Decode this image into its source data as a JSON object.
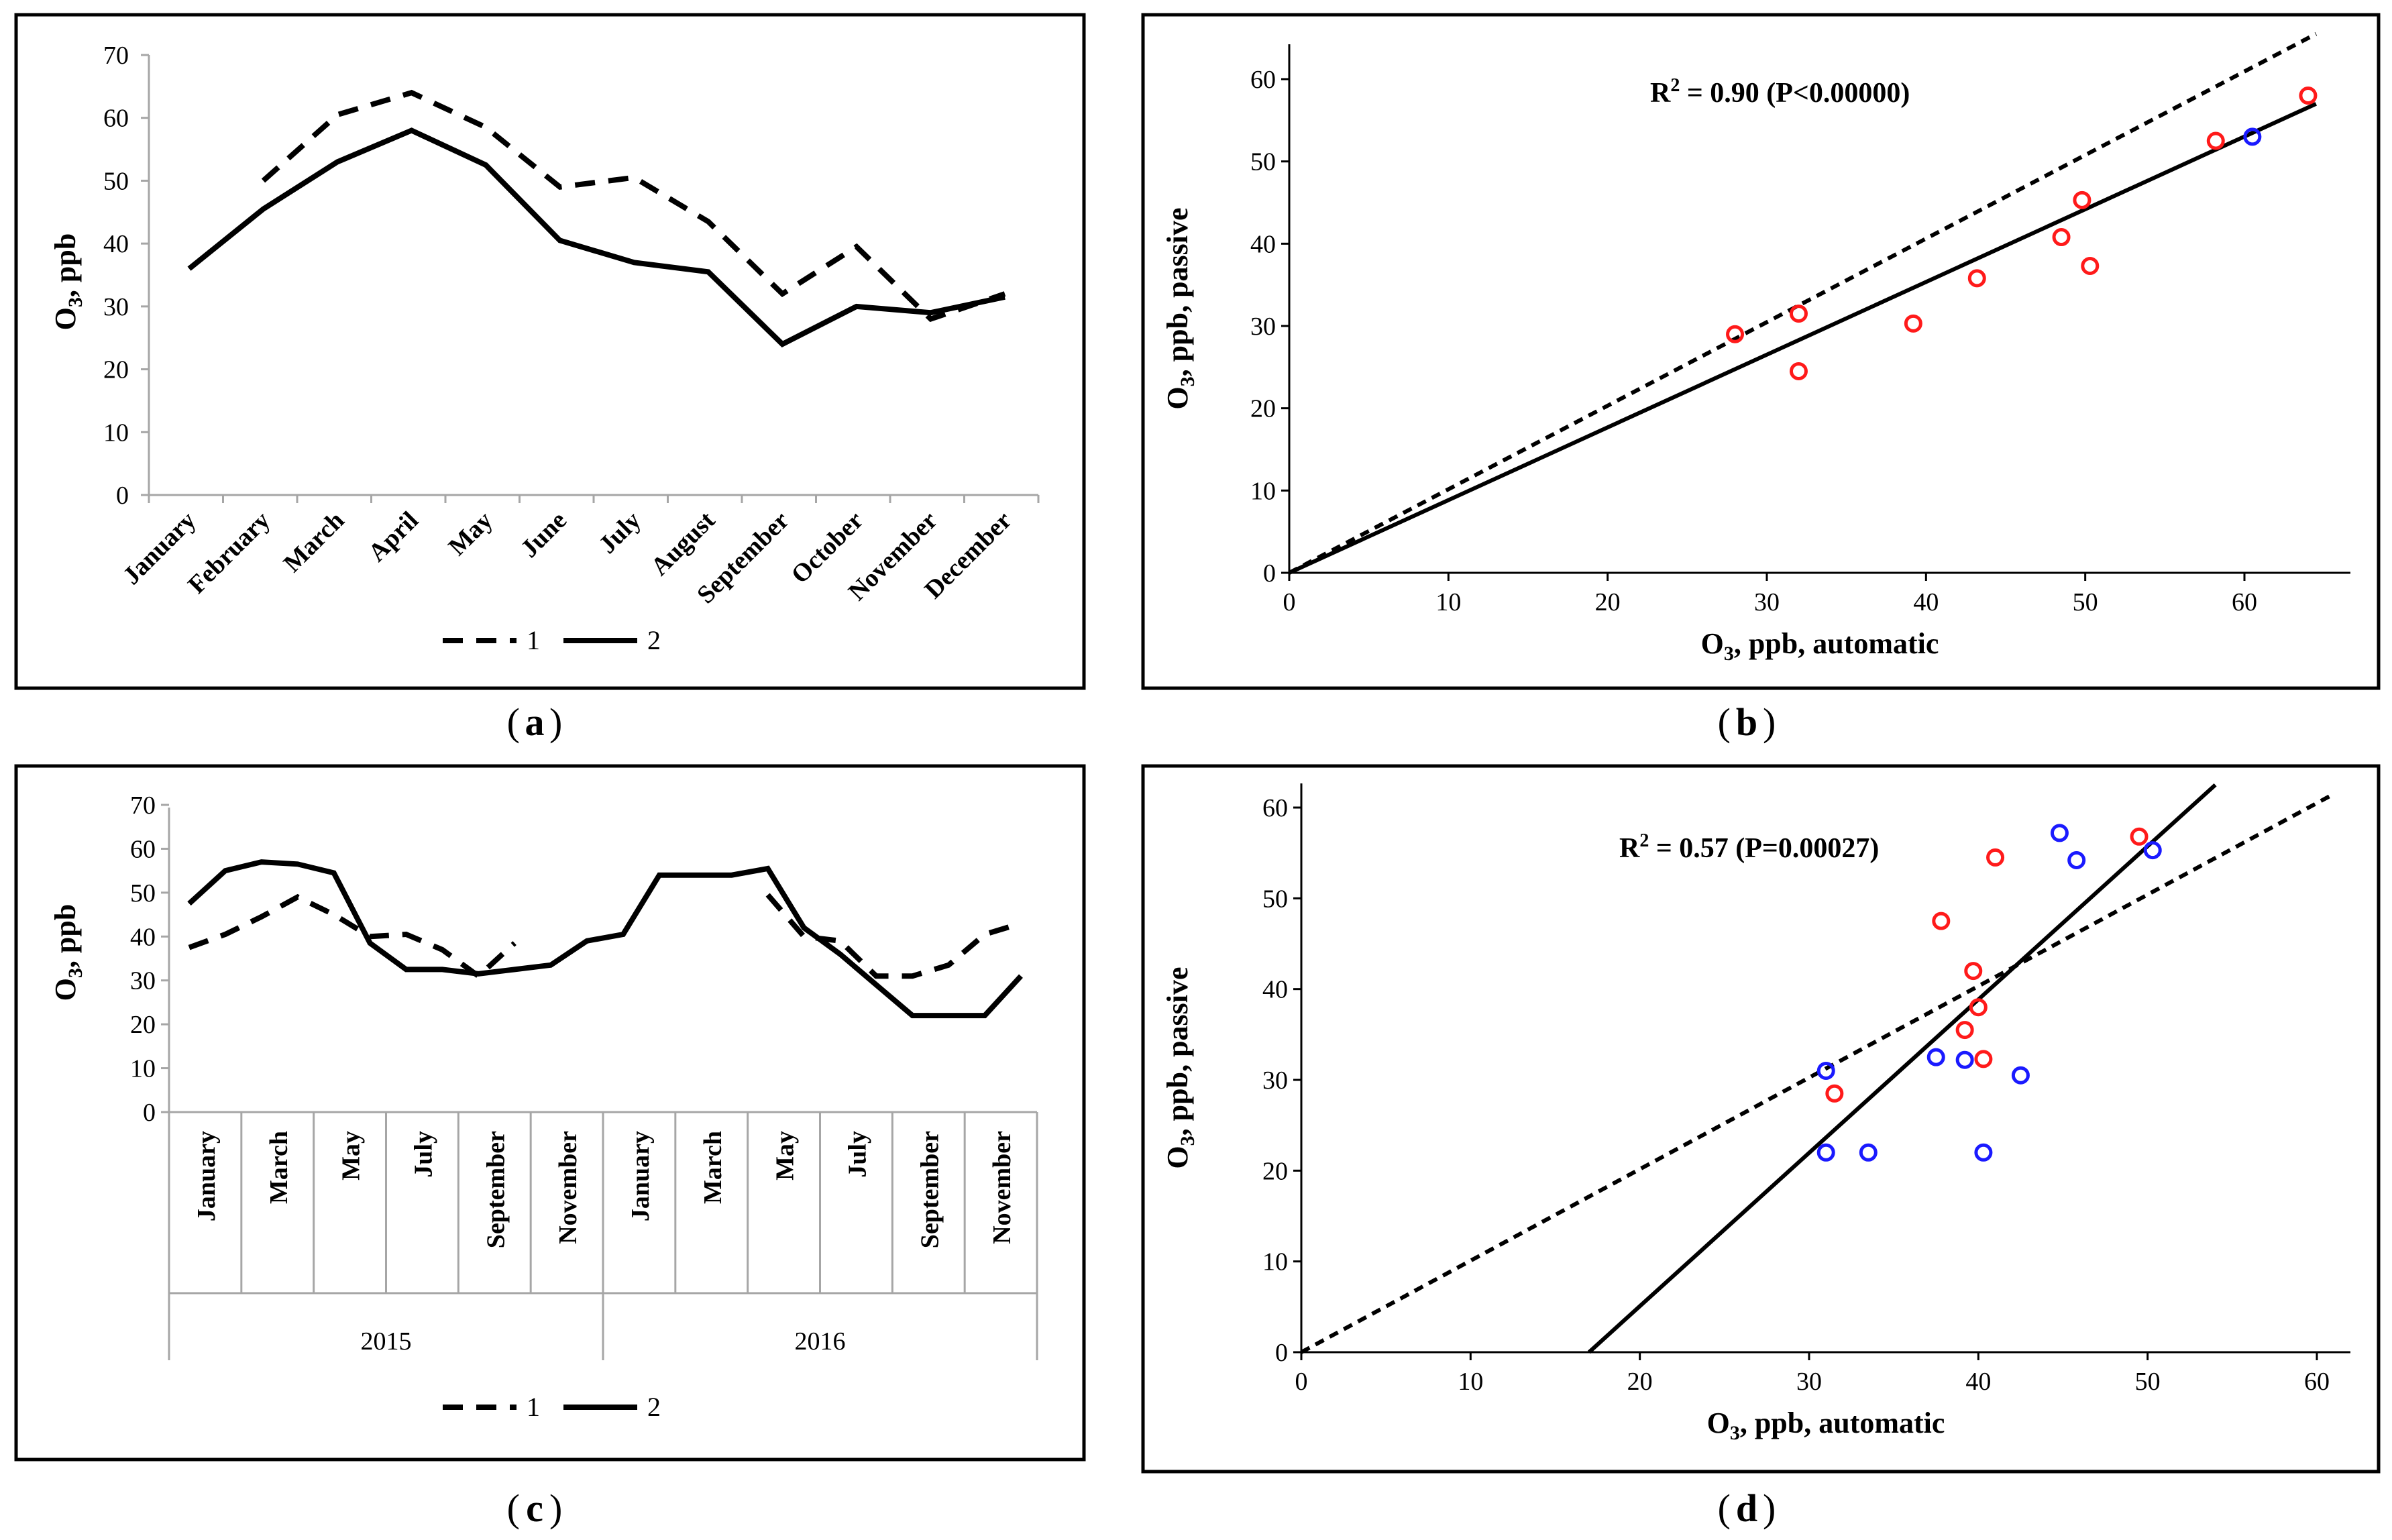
{
  "captions": {
    "a": "a",
    "b": "b",
    "c": "c",
    "d": "d"
  },
  "chart_data": [
    {
      "id": "a",
      "type": "line",
      "ylabel": "O₃, ppb",
      "ylim": [
        0,
        70
      ],
      "yticks": [
        0,
        10,
        20,
        30,
        40,
        50,
        60,
        70
      ],
      "categories": [
        "January",
        "February",
        "March",
        "April",
        "May",
        "June",
        "July",
        "August",
        "September",
        "October",
        "November",
        "December"
      ],
      "series": [
        {
          "name": "1",
          "style": "dashed",
          "values": [
            null,
            50,
            60.5,
            64,
            58.5,
            49,
            50.5,
            43.5,
            32,
            39.5,
            28,
            32
          ]
        },
        {
          "name": "2",
          "style": "solid",
          "values": [
            36,
            45.5,
            53,
            58,
            52.5,
            40.5,
            37,
            35.5,
            24,
            30,
            29,
            31.5
          ]
        }
      ],
      "legend": [
        "1",
        "2"
      ]
    },
    {
      "id": "b",
      "type": "scatter",
      "xlabel": "O₃, ppb, automatic",
      "ylabel": "O₃, ppb, passive",
      "xlim": [
        0,
        65
      ],
      "ylim": [
        0,
        63
      ],
      "xticks": [
        0,
        10,
        20,
        30,
        40,
        50,
        60
      ],
      "yticks": [
        0,
        10,
        20,
        30,
        40,
        50,
        60
      ],
      "annotation": "R² = 0.90 (P<0.00000)",
      "points_red": [
        [
          28,
          29
        ],
        [
          32,
          31.5
        ],
        [
          32,
          24.5
        ],
        [
          39.2,
          30.3
        ],
        [
          43.2,
          35.8
        ],
        [
          48.5,
          40.8
        ],
        [
          49.8,
          45.3
        ],
        [
          50.3,
          37.3
        ],
        [
          58.2,
          52.5
        ],
        [
          64,
          58
        ]
      ],
      "points_blue": [
        [
          60.5,
          53
        ]
      ],
      "lines": [
        {
          "style": "dashed",
          "x": [
            0,
            64.5
          ],
          "y": [
            0,
            65.5
          ]
        },
        {
          "style": "solid",
          "x": [
            0,
            64.5
          ],
          "y": [
            0,
            57
          ]
        }
      ]
    },
    {
      "id": "c",
      "type": "line",
      "ylabel": "O₃, ppb",
      "ylim": [
        0,
        70
      ],
      "yticks": [
        0,
        10,
        20,
        30,
        40,
        50,
        60,
        70
      ],
      "tick_labels": [
        "January",
        "March",
        "May",
        "July",
        "September",
        "November",
        "January",
        "March",
        "May",
        "July",
        "September",
        "November"
      ],
      "year_labels": [
        "2015",
        "2016"
      ],
      "series": [
        {
          "name": "1",
          "style": "dashed",
          "values": [
            37.5,
            40.5,
            44.5,
            49,
            45,
            40,
            40.5,
            37,
            31,
            38.5,
            null,
            null,
            null,
            null,
            null,
            null,
            49.5,
            40,
            39,
            31,
            31,
            33.5,
            40.5,
            43
          ]
        },
        {
          "name": "2",
          "style": "solid",
          "values": [
            47.5,
            55,
            57,
            56.5,
            54.5,
            38.5,
            32.5,
            32.5,
            31.5,
            32.5,
            33.5,
            39,
            40.5,
            54,
            54,
            54,
            55.5,
            42,
            36,
            29,
            22,
            22,
            22,
            31
          ]
        }
      ],
      "legend": [
        "1",
        "2"
      ]
    },
    {
      "id": "d",
      "type": "scatter",
      "xlabel": "O₃, ppb, automatic",
      "ylabel": "O₃, ppb, passive",
      "xlim": [
        0,
        61
      ],
      "ylim": [
        0,
        61.5
      ],
      "xticks": [
        0,
        10,
        20,
        30,
        40,
        50,
        60
      ],
      "yticks": [
        0,
        10,
        20,
        30,
        40,
        50,
        60
      ],
      "annotation": "R² = 0.57 (P=0.00027)",
      "points_red": [
        [
          31.5,
          28.5
        ],
        [
          37.8,
          47.5
        ],
        [
          39.2,
          35.5
        ],
        [
          39.7,
          42
        ],
        [
          40,
          38
        ],
        [
          40.3,
          32.3
        ],
        [
          41,
          54.5
        ],
        [
          49.5,
          56.8
        ]
      ],
      "points_blue": [
        [
          31,
          31
        ],
        [
          31,
          22
        ],
        [
          33.5,
          22
        ],
        [
          37.5,
          32.5
        ],
        [
          39.2,
          32.2
        ],
        [
          40.3,
          22
        ],
        [
          42.5,
          30.5
        ],
        [
          44.8,
          57.2
        ],
        [
          45.8,
          54.2
        ],
        [
          50.3,
          55.3
        ]
      ],
      "lines": [
        {
          "style": "dashed",
          "x": [
            0,
            61
          ],
          "y": [
            0,
            61.5
          ]
        },
        {
          "style": "solid",
          "x": [
            17,
            54
          ],
          "y": [
            0,
            62.5
          ]
        }
      ]
    }
  ]
}
